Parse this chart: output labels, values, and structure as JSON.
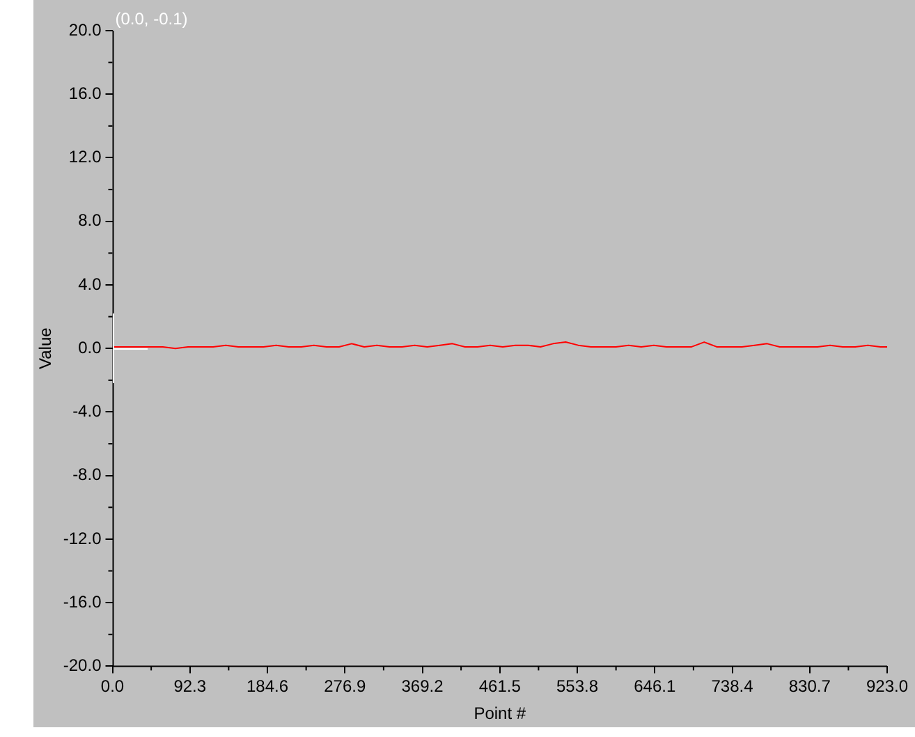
{
  "chart_data": {
    "type": "line",
    "xlabel": "Point #",
    "ylabel": "Value",
    "x": [
      0,
      15,
      30,
      45,
      60,
      75,
      90,
      105,
      120,
      135,
      150,
      165,
      180,
      195,
      210,
      225,
      240,
      255,
      270,
      285,
      300,
      315,
      330,
      345,
      360,
      375,
      390,
      405,
      420,
      435,
      450,
      465,
      480,
      495,
      510,
      525,
      540,
      555,
      570,
      585,
      600,
      615,
      630,
      645,
      660,
      675,
      690,
      705,
      720,
      735,
      750,
      765,
      780,
      795,
      810,
      825,
      840,
      855,
      870,
      885,
      900,
      915,
      923
    ],
    "series": [
      {
        "color": "#ff0000",
        "values": [
          0.1,
          0.1,
          0.1,
          0.1,
          0.1,
          0.0,
          0.1,
          0.1,
          0.1,
          0.2,
          0.1,
          0.1,
          0.1,
          0.2,
          0.1,
          0.1,
          0.2,
          0.1,
          0.1,
          0.3,
          0.1,
          0.2,
          0.1,
          0.1,
          0.2,
          0.1,
          0.2,
          0.3,
          0.1,
          0.1,
          0.2,
          0.1,
          0.2,
          0.2,
          0.1,
          0.3,
          0.4,
          0.2,
          0.1,
          0.1,
          0.1,
          0.2,
          0.1,
          0.2,
          0.1,
          0.1,
          0.1,
          0.4,
          0.1,
          0.1,
          0.1,
          0.2,
          0.3,
          0.1,
          0.1,
          0.1,
          0.1,
          0.2,
          0.1,
          0.1,
          0.2,
          0.1,
          0.1
        ]
      }
    ],
    "xlim": [
      0,
      923
    ],
    "xticks": [
      {
        "value": 0,
        "label": "0.0"
      },
      92.3,
      184.6,
      276.9,
      369.2,
      461.5,
      553.8,
      646.1,
      738.4,
      830.7,
      {
        "value": 923,
        "label": "923.0"
      }
    ],
    "ylim": [
      -20,
      20
    ],
    "yticks": [
      {
        "value": -20,
        "label": "-20.0"
      },
      {
        "value": -16,
        "label": "-16.0"
      },
      {
        "value": -12,
        "label": "-12.0"
      },
      {
        "value": -8,
        "label": "-8.0"
      },
      {
        "value": -4,
        "label": "-4.0"
      },
      {
        "value": 0,
        "label": "0.0"
      },
      {
        "value": 4,
        "label": "4.0"
      },
      {
        "value": 8,
        "label": "8.0"
      },
      {
        "value": 12,
        "label": "12.0"
      },
      {
        "value": 16,
        "label": "16.0"
      },
      {
        "value": 20,
        "label": "20.0"
      }
    ],
    "annotations": [
      "(0.0, -0.1)"
    ],
    "grid": false,
    "legend": false,
    "marker": "none",
    "line_style": "solid"
  }
}
